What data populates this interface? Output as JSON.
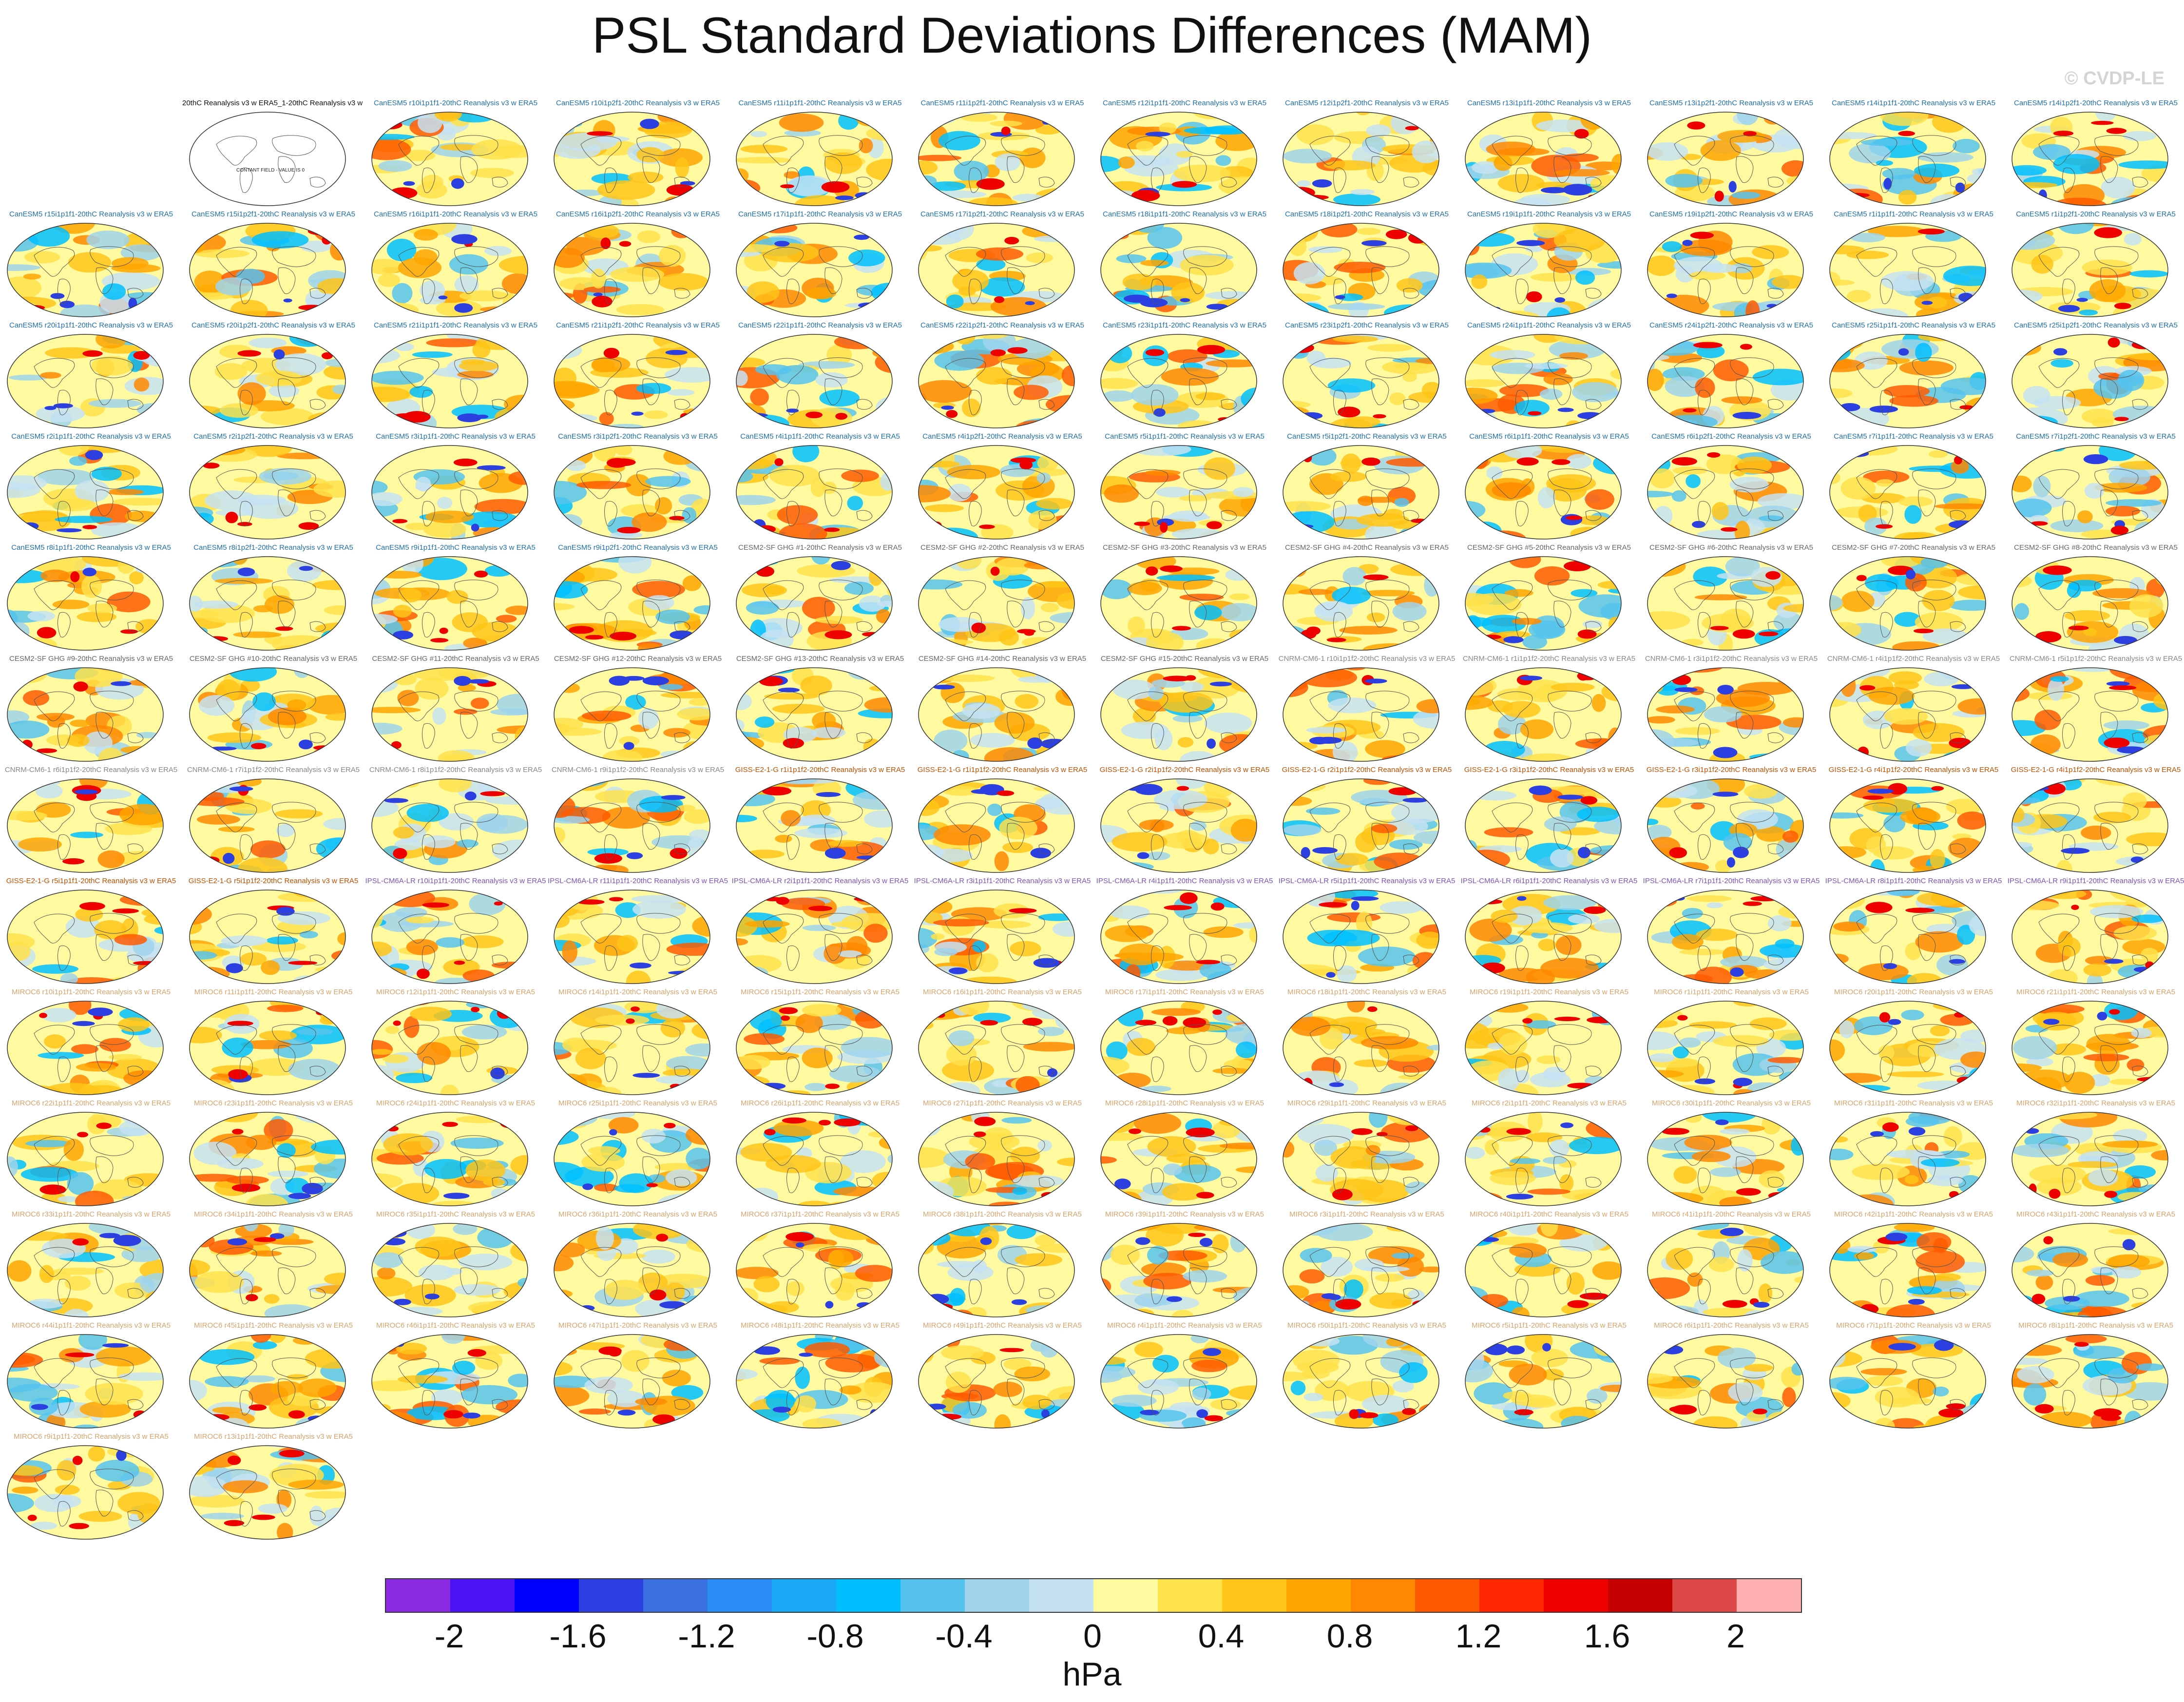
{
  "title": "PSL Standard Deviations Differences (MAM)",
  "watermark": "© CVDP-LE",
  "units": "hPa",
  "reference_note": "CONTANT FIELD - VALUE IS 0",
  "colorbar": {
    "colors": [
      "#8a2be2",
      "#4b12f3",
      "#0000ff",
      "#2c3fe0",
      "#3a6fe0",
      "#2b8cf5",
      "#1aaaf5",
      "#00bfff",
      "#56c3ef",
      "#9fd3ec",
      "#c5e2f2",
      "#fffaa0",
      "#ffe14a",
      "#ffc418",
      "#ffa500",
      "#ff8800",
      "#ff5a00",
      "#ff2600",
      "#ee0000",
      "#c50000",
      "#dd4848",
      "#ffb0b0"
    ],
    "tick_labels": [
      "-2",
      "-1.6",
      "-1.2",
      "-0.8",
      "-0.4",
      "0",
      "0.4",
      "0.8",
      "1.2",
      "1.6",
      "2"
    ]
  },
  "group_colors": {
    "ref": "#111111",
    "canesm": "#1f6fa8",
    "cesm": "#666666",
    "cnrm": "#888888",
    "giss": "#c05000",
    "ipsl": "#7b55b8",
    "miroc": "#d6a36b"
  },
  "panels": [
    {
      "label": "20thC Reanalysis v3 w ERA5_1-20thC Reanalysis v3 w ERA5",
      "group": "ref"
    },
    {
      "label": "CanESM5 r10i1p1f1-20thC Reanalysis v3 w ERA5",
      "group": "canesm"
    },
    {
      "label": "CanESM5 r10i1p2f1-20thC Reanalysis v3 w ERA5",
      "group": "canesm"
    },
    {
      "label": "CanESM5 r11i1p1f1-20thC Reanalysis v3 w ERA5",
      "group": "canesm"
    },
    {
      "label": "CanESM5 r11i1p2f1-20thC Reanalysis v3 w ERA5",
      "group": "canesm"
    },
    {
      "label": "CanESM5 r12i1p1f1-20thC Reanalysis v3 w ERA5",
      "group": "canesm"
    },
    {
      "label": "CanESM5 r12i1p2f1-20thC Reanalysis v3 w ERA5",
      "group": "canesm"
    },
    {
      "label": "CanESM5 r13i1p1f1-20thC Reanalysis v3 w ERA5",
      "group": "canesm"
    },
    {
      "label": "CanESM5 r13i1p2f1-20thC Reanalysis v3 w ERA5",
      "group": "canesm"
    },
    {
      "label": "CanESM5 r14i1p1f1-20thC Reanalysis v3 w ERA5",
      "group": "canesm"
    },
    {
      "label": "CanESM5 r14i1p2f1-20thC Reanalysis v3 w ERA5",
      "group": "canesm"
    },
    {
      "label": "CanESM5 r15i1p1f1-20thC Reanalysis v3 w ERA5",
      "group": "canesm"
    },
    {
      "label": "CanESM5 r15i1p2f1-20thC Reanalysis v3 w ERA5",
      "group": "canesm"
    },
    {
      "label": "CanESM5 r16i1p1f1-20thC Reanalysis v3 w ERA5",
      "group": "canesm"
    },
    {
      "label": "CanESM5 r16i1p2f1-20thC Reanalysis v3 w ERA5",
      "group": "canesm"
    },
    {
      "label": "CanESM5 r17i1p1f1-20thC Reanalysis v3 w ERA5",
      "group": "canesm"
    },
    {
      "label": "CanESM5 r17i1p2f1-20thC Reanalysis v3 w ERA5",
      "group": "canesm"
    },
    {
      "label": "CanESM5 r18i1p1f1-20thC Reanalysis v3 w ERA5",
      "group": "canesm"
    },
    {
      "label": "CanESM5 r18i1p2f1-20thC Reanalysis v3 w ERA5",
      "group": "canesm"
    },
    {
      "label": "CanESM5 r19i1p1f1-20thC Reanalysis v3 w ERA5",
      "group": "canesm"
    },
    {
      "label": "CanESM5 r19i1p2f1-20thC Reanalysis v3 w ERA5",
      "group": "canesm"
    },
    {
      "label": "CanESM5 r1i1p1f1-20thC Reanalysis v3 w ERA5",
      "group": "canesm"
    },
    {
      "label": "CanESM5 r1i1p2f1-20thC Reanalysis v3 w ERA5",
      "group": "canesm"
    },
    {
      "label": "CanESM5 r20i1p1f1-20thC Reanalysis v3 w ERA5",
      "group": "canesm"
    },
    {
      "label": "CanESM5 r20i1p2f1-20thC Reanalysis v3 w ERA5",
      "group": "canesm"
    },
    {
      "label": "CanESM5 r21i1p1f1-20thC Reanalysis v3 w ERA5",
      "group": "canesm"
    },
    {
      "label": "CanESM5 r21i1p2f1-20thC Reanalysis v3 w ERA5",
      "group": "canesm"
    },
    {
      "label": "CanESM5 r22i1p1f1-20thC Reanalysis v3 w ERA5",
      "group": "canesm"
    },
    {
      "label": "CanESM5 r22i1p2f1-20thC Reanalysis v3 w ERA5",
      "group": "canesm"
    },
    {
      "label": "CanESM5 r23i1p1f1-20thC Reanalysis v3 w ERA5",
      "group": "canesm"
    },
    {
      "label": "CanESM5 r23i1p2f1-20thC Reanalysis v3 w ERA5",
      "group": "canesm"
    },
    {
      "label": "CanESM5 r24i1p1f1-20thC Reanalysis v3 w ERA5",
      "group": "canesm"
    },
    {
      "label": "CanESM5 r24i1p2f1-20thC Reanalysis v3 w ERA5",
      "group": "canesm"
    },
    {
      "label": "CanESM5 r25i1p1f1-20thC Reanalysis v3 w ERA5",
      "group": "canesm"
    },
    {
      "label": "CanESM5 r25i1p2f1-20thC Reanalysis v3 w ERA5",
      "group": "canesm"
    },
    {
      "label": "CanESM5 r2i1p1f1-20thC Reanalysis v3 w ERA5",
      "group": "canesm"
    },
    {
      "label": "CanESM5 r2i1p2f1-20thC Reanalysis v3 w ERA5",
      "group": "canesm"
    },
    {
      "label": "CanESM5 r3i1p1f1-20thC Reanalysis v3 w ERA5",
      "group": "canesm"
    },
    {
      "label": "CanESM5 r3i1p2f1-20thC Reanalysis v3 w ERA5",
      "group": "canesm"
    },
    {
      "label": "CanESM5 r4i1p1f1-20thC Reanalysis v3 w ERA5",
      "group": "canesm"
    },
    {
      "label": "CanESM5 r4i1p2f1-20thC Reanalysis v3 w ERA5",
      "group": "canesm"
    },
    {
      "label": "CanESM5 r5i1p1f1-20thC Reanalysis v3 w ERA5",
      "group": "canesm"
    },
    {
      "label": "CanESM5 r5i1p2f1-20thC Reanalysis v3 w ERA5",
      "group": "canesm"
    },
    {
      "label": "CanESM5 r6i1p1f1-20thC Reanalysis v3 w ERA5",
      "group": "canesm"
    },
    {
      "label": "CanESM5 r6i1p2f1-20thC Reanalysis v3 w ERA5",
      "group": "canesm"
    },
    {
      "label": "CanESM5 r7i1p1f1-20thC Reanalysis v3 w ERA5",
      "group": "canesm"
    },
    {
      "label": "CanESM5 r7i1p2f1-20thC Reanalysis v3 w ERA5",
      "group": "canesm"
    },
    {
      "label": "CanESM5 r8i1p1f1-20thC Reanalysis v3 w ERA5",
      "group": "canesm"
    },
    {
      "label": "CanESM5 r8i1p2f1-20thC Reanalysis v3 w ERA5",
      "group": "canesm"
    },
    {
      "label": "CanESM5 r9i1p1f1-20thC Reanalysis v3 w ERA5",
      "group": "canesm"
    },
    {
      "label": "CanESM5 r9i1p2f1-20thC Reanalysis v3 w ERA5",
      "group": "canesm"
    },
    {
      "label": "CESM2-SF GHG #1-20thC Reanalysis v3 w ERA5",
      "group": "cesm"
    },
    {
      "label": "CESM2-SF GHG #2-20thC Reanalysis v3 w ERA5",
      "group": "cesm"
    },
    {
      "label": "CESM2-SF GHG #3-20thC Reanalysis v3 w ERA5",
      "group": "cesm"
    },
    {
      "label": "CESM2-SF GHG #4-20thC Reanalysis v3 w ERA5",
      "group": "cesm"
    },
    {
      "label": "CESM2-SF GHG #5-20thC Reanalysis v3 w ERA5",
      "group": "cesm"
    },
    {
      "label": "CESM2-SF GHG #6-20thC Reanalysis v3 w ERA5",
      "group": "cesm"
    },
    {
      "label": "CESM2-SF GHG #7-20thC Reanalysis v3 w ERA5",
      "group": "cesm"
    },
    {
      "label": "CESM2-SF GHG #8-20thC Reanalysis v3 w ERA5",
      "group": "cesm"
    },
    {
      "label": "CESM2-SF GHG #9-20thC Reanalysis v3 w ERA5",
      "group": "cesm"
    },
    {
      "label": "CESM2-SF GHG #10-20thC Reanalysis v3 w ERA5",
      "group": "cesm"
    },
    {
      "label": "CESM2-SF GHG #11-20thC Reanalysis v3 w ERA5",
      "group": "cesm"
    },
    {
      "label": "CESM2-SF GHG #12-20thC Reanalysis v3 w ERA5",
      "group": "cesm"
    },
    {
      "label": "CESM2-SF GHG #13-20thC Reanalysis v3 w ERA5",
      "group": "cesm"
    },
    {
      "label": "CESM2-SF GHG #14-20thC Reanalysis v3 w ERA5",
      "group": "cesm"
    },
    {
      "label": "CESM2-SF GHG #15-20thC Reanalysis v3 w ERA5",
      "group": "cesm"
    },
    {
      "label": "CNRM-CM6-1 r10i1p1f2-20thC Reanalysis v3 w ERA5",
      "group": "cnrm"
    },
    {
      "label": "CNRM-CM6-1 r1i1p1f2-20thC Reanalysis v3 w ERA5",
      "group": "cnrm"
    },
    {
      "label": "CNRM-CM6-1 r3i1p1f2-20thC Reanalysis v3 w ERA5",
      "group": "cnrm"
    },
    {
      "label": "CNRM-CM6-1 r4i1p1f2-20thC Reanalysis v3 w ERA5",
      "group": "cnrm"
    },
    {
      "label": "CNRM-CM6-1 r5i1p1f2-20thC Reanalysis v3 w ERA5",
      "group": "cnrm"
    },
    {
      "label": "CNRM-CM6-1 r6i1p1f2-20thC Reanalysis v3 w ERA5",
      "group": "cnrm"
    },
    {
      "label": "CNRM-CM6-1 r7i1p1f2-20thC Reanalysis v3 w ERA5",
      "group": "cnrm"
    },
    {
      "label": "CNRM-CM6-1 r8i1p1f2-20thC Reanalysis v3 w ERA5",
      "group": "cnrm"
    },
    {
      "label": "CNRM-CM6-1 r9i1p1f2-20thC Reanalysis v3 w ERA5",
      "group": "cnrm"
    },
    {
      "label": "GISS-E2-1-G r1i1p1f2-20thC Reanalysis v3 w ERA5",
      "group": "giss"
    },
    {
      "label": "GISS-E2-1-G r1i1p1f2-20thC Reanalysis v3 w ERA5",
      "group": "giss"
    },
    {
      "label": "GISS-E2-1-G r2i1p1f2-20thC Reanalysis v3 w ERA5",
      "group": "giss"
    },
    {
      "label": "GISS-E2-1-G r2i1p1f2-20thC Reanalysis v3 w ERA5",
      "group": "giss"
    },
    {
      "label": "GISS-E2-1-G r3i1p1f2-20thC Reanalysis v3 w ERA5",
      "group": "giss"
    },
    {
      "label": "GISS-E2-1-G r3i1p1f2-20thC Reanalysis v3 w ERA5",
      "group": "giss"
    },
    {
      "label": "GISS-E2-1-G r4i1p1f2-20thC Reanalysis v3 w ERA5",
      "group": "giss"
    },
    {
      "label": "GISS-E2-1-G r4i1p1f2-20thC Reanalysis v3 w ERA5",
      "group": "giss"
    },
    {
      "label": "GISS-E2-1-G r5i1p1f1-20thC Reanalysis v3 w ERA5",
      "group": "giss"
    },
    {
      "label": "GISS-E2-1-G r5i1p1f2-20thC Reanalysis v3 w ERA5",
      "group": "giss"
    },
    {
      "label": "IPSL-CM6A-LR r10i1p1f1-20thC Reanalysis v3 w ERA5",
      "group": "ipsl"
    },
    {
      "label": "IPSL-CM6A-LR r11i1p1f1-20thC Reanalysis v3 w ERA5",
      "group": "ipsl"
    },
    {
      "label": "IPSL-CM6A-LR r2i1p1f1-20thC Reanalysis v3 w ERA5",
      "group": "ipsl"
    },
    {
      "label": "IPSL-CM6A-LR r3i1p1f1-20thC Reanalysis v3 w ERA5",
      "group": "ipsl"
    },
    {
      "label": "IPSL-CM6A-LR r4i1p1f1-20thC Reanalysis v3 w ERA5",
      "group": "ipsl"
    },
    {
      "label": "IPSL-CM6A-LR r5i1p1f1-20thC Reanalysis v3 w ERA5",
      "group": "ipsl"
    },
    {
      "label": "IPSL-CM6A-LR r6i1p1f1-20thC Reanalysis v3 w ERA5",
      "group": "ipsl"
    },
    {
      "label": "IPSL-CM6A-LR r7i1p1f1-20thC Reanalysis v3 w ERA5",
      "group": "ipsl"
    },
    {
      "label": "IPSL-CM6A-LR r8i1p1f1-20thC Reanalysis v3 w ERA5",
      "group": "ipsl"
    },
    {
      "label": "IPSL-CM6A-LR r9i1p1f1-20thC Reanalysis v3 w ERA5",
      "group": "ipsl"
    },
    {
      "label": "MIROC6 r10i1p1f1-20thC Reanalysis v3 w ERA5",
      "group": "miroc"
    },
    {
      "label": "MIROC6 r11i1p1f1-20thC Reanalysis v3 w ERA5",
      "group": "miroc"
    },
    {
      "label": "MIROC6 r12i1p1f1-20thC Reanalysis v3 w ERA5",
      "group": "miroc"
    },
    {
      "label": "MIROC6 r14i1p1f1-20thC Reanalysis v3 w ERA5",
      "group": "miroc"
    },
    {
      "label": "MIROC6 r15i1p1f1-20thC Reanalysis v3 w ERA5",
      "group": "miroc"
    },
    {
      "label": "MIROC6 r16i1p1f1-20thC Reanalysis v3 w ERA5",
      "group": "miroc"
    },
    {
      "label": "MIROC6 r17i1p1f1-20thC Reanalysis v3 w ERA5",
      "group": "miroc"
    },
    {
      "label": "MIROC6 r18i1p1f1-20thC Reanalysis v3 w ERA5",
      "group": "miroc"
    },
    {
      "label": "MIROC6 r19i1p1f1-20thC Reanalysis v3 w ERA5",
      "group": "miroc"
    },
    {
      "label": "MIROC6 r1i1p1f1-20thC Reanalysis v3 w ERA5",
      "group": "miroc"
    },
    {
      "label": "MIROC6 r20i1p1f1-20thC Reanalysis v3 w ERA5",
      "group": "miroc"
    },
    {
      "label": "MIROC6 r21i1p1f1-20thC Reanalysis v3 w ERA5",
      "group": "miroc"
    },
    {
      "label": "MIROC6 r22i1p1f1-20thC Reanalysis v3 w ERA5",
      "group": "miroc"
    },
    {
      "label": "MIROC6 r23i1p1f1-20thC Reanalysis v3 w ERA5",
      "group": "miroc"
    },
    {
      "label": "MIROC6 r24i1p1f1-20thC Reanalysis v3 w ERA5",
      "group": "miroc"
    },
    {
      "label": "MIROC6 r25i1p1f1-20thC Reanalysis v3 w ERA5",
      "group": "miroc"
    },
    {
      "label": "MIROC6 r26i1p1f1-20thC Reanalysis v3 w ERA5",
      "group": "miroc"
    },
    {
      "label": "MIROC6 r27i1p1f1-20thC Reanalysis v3 w ERA5",
      "group": "miroc"
    },
    {
      "label": "MIROC6 r28i1p1f1-20thC Reanalysis v3 w ERA5",
      "group": "miroc"
    },
    {
      "label": "MIROC6 r29i1p1f1-20thC Reanalysis v3 w ERA5",
      "group": "miroc"
    },
    {
      "label": "MIROC6 r2i1p1f1-20thC Reanalysis v3 w ERA5",
      "group": "miroc"
    },
    {
      "label": "MIROC6 r30i1p1f1-20thC Reanalysis v3 w ERA5",
      "group": "miroc"
    },
    {
      "label": "MIROC6 r31i1p1f1-20thC Reanalysis v3 w ERA5",
      "group": "miroc"
    },
    {
      "label": "MIROC6 r32i1p1f1-20thC Reanalysis v3 w ERA5",
      "group": "miroc"
    },
    {
      "label": "MIROC6 r33i1p1f1-20thC Reanalysis v3 w ERA5",
      "group": "miroc"
    },
    {
      "label": "MIROC6 r34i1p1f1-20thC Reanalysis v3 w ERA5",
      "group": "miroc"
    },
    {
      "label": "MIROC6 r35i1p1f1-20thC Reanalysis v3 w ERA5",
      "group": "miroc"
    },
    {
      "label": "MIROC6 r36i1p1f1-20thC Reanalysis v3 w ERA5",
      "group": "miroc"
    },
    {
      "label": "MIROC6 r37i1p1f1-20thC Reanalysis v3 w ERA5",
      "group": "miroc"
    },
    {
      "label": "MIROC6 r38i1p1f1-20thC Reanalysis v3 w ERA5",
      "group": "miroc"
    },
    {
      "label": "MIROC6 r39i1p1f1-20thC Reanalysis v3 w ERA5",
      "group": "miroc"
    },
    {
      "label": "MIROC6 r3i1p1f1-20thC Reanalysis v3 w ERA5",
      "group": "miroc"
    },
    {
      "label": "MIROC6 r40i1p1f1-20thC Reanalysis v3 w ERA5",
      "group": "miroc"
    },
    {
      "label": "MIROC6 r41i1p1f1-20thC Reanalysis v3 w ERA5",
      "group": "miroc"
    },
    {
      "label": "MIROC6 r42i1p1f1-20thC Reanalysis v3 w ERA5",
      "group": "miroc"
    },
    {
      "label": "MIROC6 r43i1p1f1-20thC Reanalysis v3 w ERA5",
      "group": "miroc"
    },
    {
      "label": "MIROC6 r44i1p1f1-20thC Reanalysis v3 w ERA5",
      "group": "miroc"
    },
    {
      "label": "MIROC6 r45i1p1f1-20thC Reanalysis v3 w ERA5",
      "group": "miroc"
    },
    {
      "label": "MIROC6 r46i1p1f1-20thC Reanalysis v3 w ERA5",
      "group": "miroc"
    },
    {
      "label": "MIROC6 r47i1p1f1-20thC Reanalysis v3 w ERA5",
      "group": "miroc"
    },
    {
      "label": "MIROC6 r48i1p1f1-20thC Reanalysis v3 w ERA5",
      "group": "miroc"
    },
    {
      "label": "MIROC6 r49i1p1f1-20thC Reanalysis v3 w ERA5",
      "group": "miroc"
    },
    {
      "label": "MIROC6 r4i1p1f1-20thC Reanalysis v3 w ERA5",
      "group": "miroc"
    },
    {
      "label": "MIROC6 r50i1p1f1-20thC Reanalysis v3 w ERA5",
      "group": "miroc"
    },
    {
      "label": "MIROC6 r5i1p1f1-20thC Reanalysis v3 w ERA5",
      "group": "miroc"
    },
    {
      "label": "MIROC6 r6i1p1f1-20thC Reanalysis v3 w ERA5",
      "group": "miroc"
    },
    {
      "label": "MIROC6 r7i1p1f1-20thC Reanalysis v3 w ERA5",
      "group": "miroc"
    },
    {
      "label": "MIROC6 r8i1p1f1-20thC Reanalysis v3 w ERA5",
      "group": "miroc"
    },
    {
      "label": "MIROC6 r9i1p1f1-20thC Reanalysis v3 w ERA5",
      "group": "miroc"
    },
    {
      "label": "MIROC6 r13i1p1f1-20thC Reanalysis v3 w ERA5",
      "group": "miroc"
    }
  ]
}
